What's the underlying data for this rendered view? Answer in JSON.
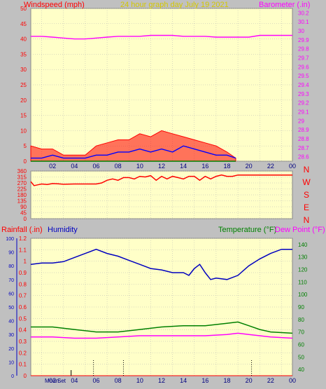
{
  "colors": {
    "background": "#c0c0c0",
    "plot_bg": "#ffffc8",
    "grid": "#b4b4b4",
    "wind": "#ff0000",
    "gust": "#0000ff",
    "green": "#008000",
    "baro": "#ff00ff",
    "title": "#d4c800",
    "direction": "#ff0000",
    "rain_axis": "#ff0000",
    "humidity": "#0000c0",
    "temperature": "#008000",
    "dewpoint": "#ff00ff",
    "moon": "#000000"
  },
  "header": {
    "windspeed_label": "Windspeed (mph)",
    "title": "24 hour graph day   July 19 2021",
    "barometer_label": "Barometer (.in)"
  },
  "lower_header": {
    "rain_label": "Rainfall (.in)",
    "humidity_label": "Humidity",
    "temperature_label": "Temperature (°F)",
    "dewpoint_label": "Dew Point (°F)"
  },
  "footer": {
    "moon_label": "Moon",
    "set_label": "Set"
  },
  "chart_data": [
    {
      "type": "line",
      "name": "wind-barometer",
      "x_ticks": [
        "02",
        "04",
        "06",
        "08",
        "10",
        "12",
        "14",
        "16",
        "18",
        "20",
        "22",
        "00"
      ],
      "xlim": [
        0,
        24
      ],
      "ylim_left": [
        0,
        50
      ],
      "y_ticks_left": [
        "50",
        "45",
        "40",
        "35",
        "30",
        "25",
        "20",
        "15",
        "10",
        "5",
        "0"
      ],
      "ylim_right": [
        28.55,
        30.25
      ],
      "y_ticks_right": [
        "30.2",
        "30.1",
        "30",
        "29.9",
        "29.8",
        "29.7",
        "29.6",
        "29.5",
        "29.4",
        "29.3",
        "29.2",
        "29.1",
        "29",
        "28.9",
        "28.8",
        "28.7",
        "28.6"
      ],
      "barometer": {
        "x": [
          0,
          1,
          2,
          3,
          4,
          5,
          6,
          7,
          8,
          9,
          10,
          11,
          12,
          13,
          14,
          15,
          16,
          17,
          18,
          19,
          20,
          21,
          22,
          23,
          24
        ],
        "y": [
          29.94,
          29.94,
          29.93,
          29.92,
          29.91,
          29.91,
          29.92,
          29.93,
          29.94,
          29.94,
          29.94,
          29.95,
          29.95,
          29.95,
          29.94,
          29.94,
          29.94,
          29.93,
          29.93,
          29.93,
          29.93,
          29.95,
          29.95,
          29.95,
          29.95
        ]
      },
      "wind_speed": {
        "x": [
          0,
          1,
          2,
          3,
          4,
          5,
          6,
          7,
          8,
          9,
          10,
          11,
          12,
          13,
          14,
          15,
          16,
          17,
          18,
          18.8
        ],
        "y": [
          1,
          1,
          2,
          1,
          1,
          1,
          2,
          2,
          3,
          3,
          4,
          3,
          4,
          3,
          5,
          4,
          3,
          2,
          2,
          1
        ]
      },
      "wind_gust": {
        "x": [
          0,
          1,
          2,
          3,
          4,
          5,
          6,
          7,
          8,
          9,
          10,
          11,
          12,
          13,
          14,
          15,
          16,
          17,
          18,
          18.8
        ],
        "y": [
          5,
          4,
          4,
          2,
          2,
          2,
          5,
          6,
          7,
          7,
          9,
          8,
          10,
          9,
          8,
          7,
          6,
          5,
          3,
          1
        ]
      }
    },
    {
      "type": "line",
      "name": "wind-direction",
      "xlim": [
        0,
        24
      ],
      "ylim": [
        0,
        360
      ],
      "y_ticks": [
        "360",
        "315",
        "270",
        "225",
        "180",
        "135",
        "90",
        "45",
        "0"
      ],
      "compass_labels": [
        "N",
        "W",
        "S",
        "E",
        "N"
      ],
      "direction": {
        "x": [
          0,
          0.3,
          0.6,
          1,
          1.5,
          2,
          2.5,
          3,
          4,
          5,
          6,
          6.5,
          7,
          7.5,
          8,
          8.5,
          9,
          9.5,
          10,
          10.5,
          11,
          11.5,
          12,
          12.5,
          13,
          13.5,
          14,
          14.5,
          15,
          15.5,
          16,
          16.5,
          17,
          17.5,
          18,
          18.5,
          19,
          20,
          22,
          24
        ],
        "y": [
          280,
          250,
          255,
          262,
          258,
          265,
          263,
          260,
          262,
          262,
          262,
          270,
          290,
          300,
          290,
          310,
          310,
          300,
          320,
          315,
          325,
          290,
          320,
          300,
          320,
          310,
          300,
          320,
          320,
          290,
          320,
          300,
          320,
          330,
          320,
          320,
          330,
          330,
          330,
          330
        ]
      }
    },
    {
      "type": "line",
      "name": "humidity-temperature",
      "xlim": [
        0,
        24
      ],
      "ylim_left_rain": [
        0,
        1.2
      ],
      "y_ticks_left_rain": [
        "1.2",
        "1.1",
        "1",
        "0.9",
        "0.8",
        "0.7",
        "0.6",
        "0.5",
        "0.4",
        "0.3",
        "0.2",
        "0.1",
        "0"
      ],
      "ylim_humidity": [
        0,
        100
      ],
      "y_ticks_humidity": [
        "100",
        "90",
        "80",
        "70",
        "60",
        "50",
        "40",
        "30",
        "20",
        "10",
        "0"
      ],
      "ylim_temperature": [
        35,
        145
      ],
      "y_ticks_temperature": [
        "140",
        "130",
        "120",
        "110",
        "100",
        "90",
        "80",
        "70",
        "60",
        "50",
        "40"
      ],
      "humidity": {
        "x": [
          0,
          1,
          2,
          3,
          4,
          5,
          6,
          7,
          8,
          9,
          10,
          11,
          12,
          13,
          14,
          14.5,
          15,
          15.5,
          16,
          16.5,
          17,
          18,
          19,
          20,
          21,
          22,
          23,
          24
        ],
        "y": [
          81,
          82,
          82,
          83,
          86,
          89,
          92,
          89,
          87,
          84,
          81,
          78,
          77,
          75,
          75,
          73,
          78,
          81,
          75,
          70,
          71,
          70,
          73,
          80,
          85,
          89,
          92,
          92
        ]
      },
      "temperature": {
        "x": [
          0,
          2,
          4,
          6,
          8,
          10,
          12,
          14,
          16,
          18,
          19,
          20,
          21,
          22,
          24
        ],
        "y": [
          74,
          74,
          72,
          70,
          70,
          72,
          74,
          75,
          75,
          77,
          78,
          75,
          72,
          70,
          69
        ]
      },
      "dew_point": {
        "x": [
          0,
          2,
          4,
          6,
          8,
          10,
          12,
          14,
          16,
          18,
          19,
          20,
          21,
          22,
          24
        ],
        "y": [
          66,
          66,
          65,
          65,
          66,
          67,
          67,
          67,
          67,
          68,
          69,
          68,
          67,
          66,
          65
        ]
      },
      "rain": {
        "x": [
          0,
          24
        ],
        "y": [
          0,
          0
        ]
      },
      "x_ticks": [
        "02",
        "04",
        "06",
        "08",
        "10",
        "12",
        "14",
        "16",
        "18",
        "20",
        "22",
        "00"
      ]
    }
  ]
}
